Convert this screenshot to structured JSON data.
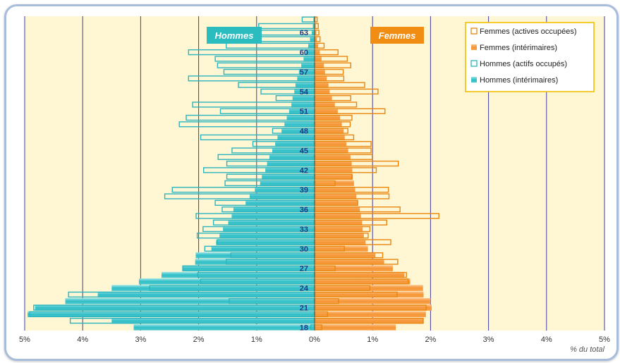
{
  "chart_data": {
    "type": "bar",
    "orientation": "horizontal",
    "subtype": "population-pyramid",
    "ages": [
      18,
      19,
      20,
      21,
      22,
      23,
      24,
      25,
      26,
      27,
      28,
      29,
      30,
      31,
      32,
      33,
      34,
      35,
      36,
      37,
      38,
      39,
      40,
      41,
      42,
      43,
      44,
      45,
      46,
      47,
      48,
      49,
      50,
      51,
      52,
      53,
      54,
      55,
      56,
      57,
      58,
      59,
      60,
      61,
      62,
      63,
      64,
      65
    ],
    "y_tick_labels": [
      "18",
      "21",
      "24",
      "27",
      "30",
      "33",
      "36",
      "39",
      "42",
      "45",
      "48",
      "51",
      "54",
      "57",
      "60",
      "63"
    ],
    "x_tick_labels": [
      "5%",
      "4%",
      "3%",
      "2%",
      "1%",
      "0%",
      "1%",
      "2%",
      "3%",
      "4%",
      "5%"
    ],
    "xlim": [
      -5,
      5
    ],
    "xlabel": "% du total",
    "grid": true,
    "legend_position": "top-right",
    "labels": {
      "hommes": "Hommes",
      "femmes": "Femmes"
    },
    "series": [
      {
        "name": "Femmes (actives occupées)",
        "side": "right",
        "style": "outline",
        "values": [
          0.13,
          1.88,
          0.23,
          1.93,
          0.42,
          1.43,
          0.96,
          1.62,
          1.59,
          0.36,
          1.44,
          1.18,
          0.52,
          1.32,
          0.93,
          0.96,
          1.25,
          2.15,
          1.48,
          0.75,
          1.29,
          1.28,
          0.36,
          0.65,
          1.07,
          1.45,
          1.0,
          0.98,
          0.98,
          0.68,
          0.58,
          0.62,
          0.65,
          1.22,
          0.73,
          0.63,
          1.1,
          0.87,
          0.51,
          0.5,
          0.63,
          0.57,
          0.41,
          0.17,
          0.1,
          0.08,
          0.07,
          0.05
        ]
      },
      {
        "name": "Femmes (intérimaires)",
        "side": "right",
        "style": "fill",
        "values": [
          1.4,
          1.88,
          1.92,
          2.02,
          2.0,
          1.88,
          1.87,
          1.65,
          1.55,
          1.35,
          1.2,
          1.05,
          0.92,
          0.88,
          0.85,
          0.83,
          0.82,
          0.8,
          0.78,
          0.74,
          0.72,
          0.7,
          0.68,
          0.66,
          0.65,
          0.64,
          0.62,
          0.58,
          0.55,
          0.52,
          0.5,
          0.47,
          0.44,
          0.4,
          0.35,
          0.3,
          0.26,
          0.24,
          0.21,
          0.18,
          0.16,
          0.12,
          0.09,
          0.06,
          0.04,
          0.03,
          0.02,
          0.01
        ]
      },
      {
        "name": "Hommes (actifs occupés)",
        "side": "left",
        "style": "outline",
        "values": [
          0.07,
          4.22,
          4.92,
          4.85,
          1.48,
          4.25,
          2.85,
          1.97,
          2.02,
          2.28,
          1.53,
          1.45,
          1.9,
          1.68,
          2.03,
          1.93,
          1.75,
          2.05,
          1.6,
          1.72,
          2.59,
          2.46,
          1.55,
          1.52,
          1.92,
          1.52,
          1.67,
          1.43,
          1.07,
          1.97,
          0.73,
          2.34,
          2.22,
          1.63,
          2.11,
          0.67,
          0.93,
          1.32,
          2.18,
          1.57,
          1.68,
          1.72,
          2.18,
          1.53,
          1.05,
          1.02,
          0.97,
          0.22
        ]
      },
      {
        "name": "Hommes (intérimaires)",
        "side": "left",
        "style": "fill",
        "values": [
          3.12,
          3.5,
          4.95,
          4.82,
          4.3,
          3.74,
          3.5,
          3.03,
          2.64,
          2.28,
          2.06,
          2.05,
          1.78,
          1.7,
          1.64,
          1.58,
          1.49,
          1.43,
          1.4,
          1.19,
          1.12,
          1.03,
          0.94,
          0.91,
          0.85,
          0.82,
          0.78,
          0.73,
          0.68,
          0.64,
          0.57,
          0.52,
          0.48,
          0.44,
          0.4,
          0.38,
          0.35,
          0.33,
          0.3,
          0.27,
          0.23,
          0.19,
          0.15,
          0.11,
          0.08,
          0.05,
          0.03,
          0.02
        ]
      }
    ]
  },
  "colors": {
    "plot_background": "#fff6d4",
    "gridline": "#3e3ea0",
    "femmes_fill": "#f69535",
    "femmes_fill_light": "#fbc189",
    "femmes_outline": "#e8860f",
    "hommes_fill": "#31bfc7",
    "hommes_fill_light": "#9be4e8",
    "hommes_outline": "#2cb5be",
    "label_hommes_bg": "#2bbcc0",
    "label_femmes_bg": "#f28d14",
    "legend_border": "#f0c000",
    "age_label": "#1d3a8a",
    "axis_text": "#333333"
  }
}
